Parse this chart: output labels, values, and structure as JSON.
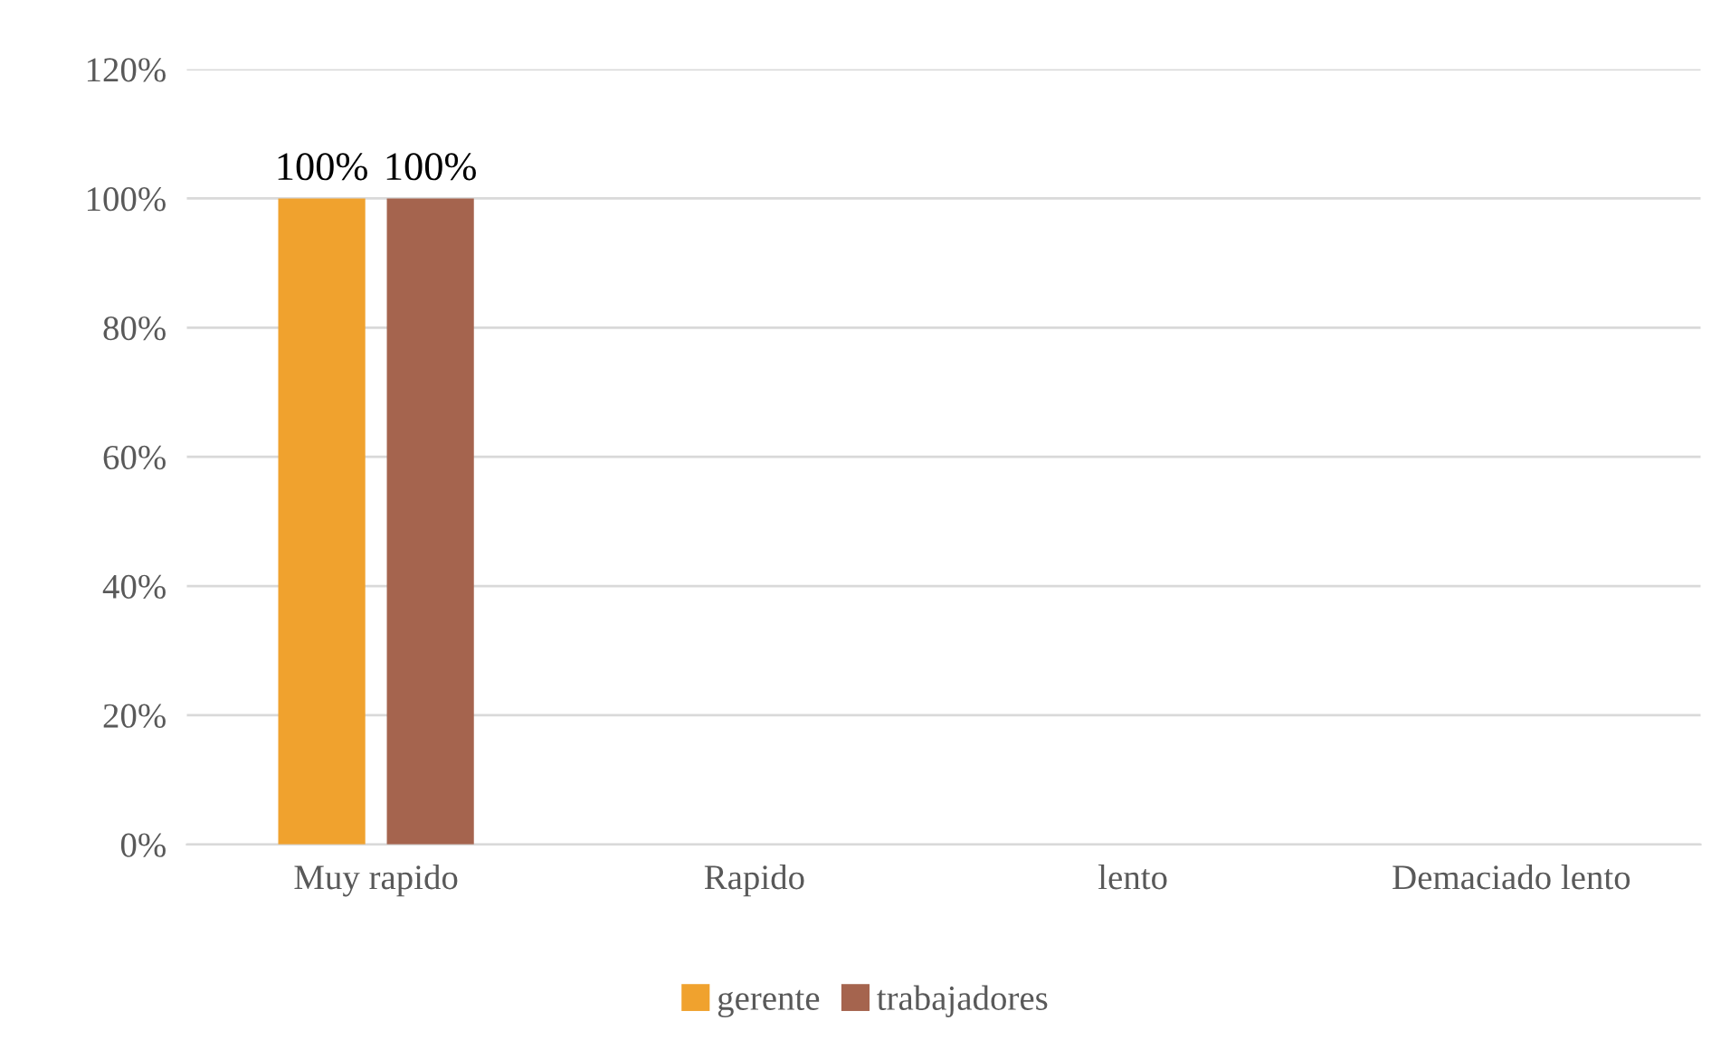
{
  "chart_data": {
    "type": "bar",
    "categories": [
      "Muy rapido",
      "Rapido",
      "lento",
      "Demaciado lento"
    ],
    "series": [
      {
        "name": "gerente",
        "color": "#f0a22e",
        "values": [
          100,
          0,
          0,
          0
        ],
        "value_labels": [
          "100%",
          null,
          null,
          null
        ]
      },
      {
        "name": "trabajadores",
        "color": "#a5644e",
        "values": [
          100,
          0,
          0,
          0
        ],
        "value_labels": [
          "100%",
          null,
          null,
          null
        ]
      }
    ],
    "ylim": [
      0,
      120
    ],
    "yticks": [
      {
        "value": 0,
        "label": "0%"
      },
      {
        "value": 20,
        "label": "20%"
      },
      {
        "value": 40,
        "label": "40%"
      },
      {
        "value": 60,
        "label": "60%"
      },
      {
        "value": 80,
        "label": "80%"
      },
      {
        "value": 100,
        "label": "100%"
      },
      {
        "value": 120,
        "label": "120%"
      }
    ],
    "grid": "y",
    "legend": "bottom"
  }
}
